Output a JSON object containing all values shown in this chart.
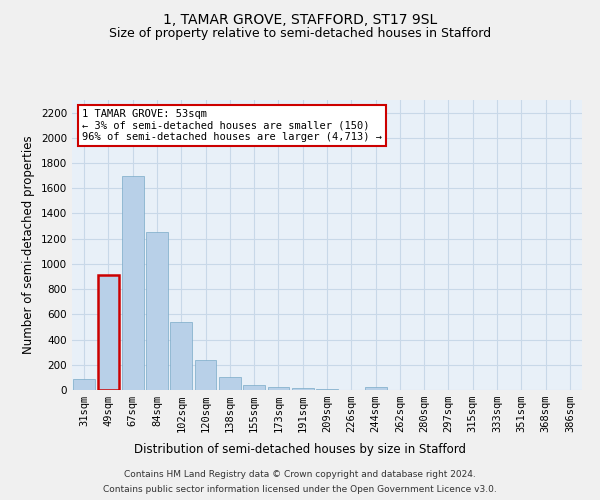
{
  "title": "1, TAMAR GROVE, STAFFORD, ST17 9SL",
  "subtitle": "Size of property relative to semi-detached houses in Stafford",
  "xlabel": "Distribution of semi-detached houses by size in Stafford",
  "ylabel": "Number of semi-detached properties",
  "categories": [
    "31sqm",
    "49sqm",
    "67sqm",
    "84sqm",
    "102sqm",
    "120sqm",
    "138sqm",
    "155sqm",
    "173sqm",
    "191sqm",
    "209sqm",
    "226sqm",
    "244sqm",
    "262sqm",
    "280sqm",
    "297sqm",
    "315sqm",
    "333sqm",
    "351sqm",
    "368sqm",
    "386sqm"
  ],
  "values": [
    90,
    910,
    1700,
    1255,
    540,
    240,
    100,
    40,
    25,
    15,
    5,
    0,
    20,
    0,
    0,
    0,
    0,
    0,
    0,
    0,
    0
  ],
  "bar_color": "#b8d0e8",
  "bar_edge_color": "#7aaac8",
  "highlight_bar_index": 1,
  "annotation_box_text": "1 TAMAR GROVE: 53sqm\n← 3% of semi-detached houses are smaller (150)\n96% of semi-detached houses are larger (4,713) →",
  "annotation_box_color": "#ffffff",
  "annotation_box_edge_color": "#cc0000",
  "ylim": [
    0,
    2300
  ],
  "yticks": [
    0,
    200,
    400,
    600,
    800,
    1000,
    1200,
    1400,
    1600,
    1800,
    2000,
    2200
  ],
  "grid_color": "#c8d8e8",
  "background_color": "#e8f0f8",
  "fig_background_color": "#f0f0f0",
  "footer_line1": "Contains HM Land Registry data © Crown copyright and database right 2024.",
  "footer_line2": "Contains public sector information licensed under the Open Government Licence v3.0.",
  "title_fontsize": 10,
  "subtitle_fontsize": 9,
  "xlabel_fontsize": 8.5,
  "ylabel_fontsize": 8.5,
  "tick_fontsize": 7.5,
  "annotation_fontsize": 7.5,
  "footer_fontsize": 6.5
}
